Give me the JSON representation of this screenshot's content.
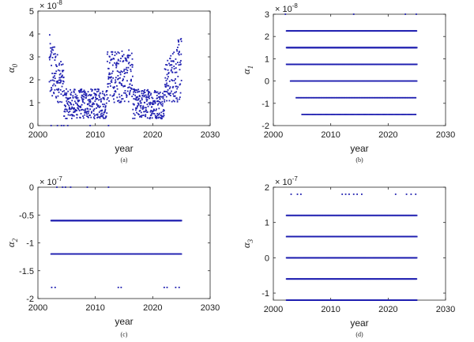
{
  "colors": {
    "marker": "#1f1fb0",
    "axis": "#262626",
    "background": "#ffffff"
  },
  "chart_data": [
    {
      "id": "a",
      "type": "scatter",
      "caption": "(a)",
      "ylabel_symbol": "α",
      "ylabel_subscript": "0",
      "xlabel": "year",
      "yexp_base": "× 10",
      "yexp_power": "-8",
      "xlim": [
        2000,
        2030
      ],
      "ylim": [
        0,
        5
      ],
      "xticks": [
        "2000",
        "2010",
        "2020",
        "2030"
      ],
      "yticks": [
        "0",
        "1",
        "2",
        "3",
        "4",
        "5"
      ],
      "x_range_data": [
        2002,
        2025
      ],
      "grid": false,
      "pattern": "scattered points, high (~1.2–4.1) in 2002–2004, 2012–2016 and 2022–2025, low (~0.3–1.6) elsewhere, a few points at 0"
    },
    {
      "id": "b",
      "type": "scatter",
      "caption": "(b)",
      "ylabel_symbol": "α",
      "ylabel_subscript": "1",
      "xlabel": "year",
      "yexp_base": "× 10",
      "yexp_power": "-8",
      "xlim": [
        2000,
        2030
      ],
      "ylim": [
        -2,
        3
      ],
      "xticks": [
        "2000",
        "2010",
        "2020",
        "2030"
      ],
      "yticks": [
        "-2",
        "-1",
        "0",
        "1",
        "2",
        "3"
      ],
      "levels": [
        3.0,
        2.25,
        1.5,
        0.75,
        0,
        -0.75,
        -1.5
      ],
      "grid": false
    },
    {
      "id": "c",
      "type": "scatter",
      "caption": "(c)",
      "ylabel_symbol": "α",
      "ylabel_subscript": "2",
      "xlabel": "year",
      "yexp_base": "× 10",
      "yexp_power": "-7",
      "xlim": [
        2000,
        2030
      ],
      "ylim": [
        -2,
        0
      ],
      "xticks": [
        "2000",
        "2010",
        "2020",
        "2030"
      ],
      "yticks": [
        "-2",
        "-1.5",
        "-1",
        "-0.5",
        "0"
      ],
      "levels": [
        0,
        -0.6,
        -1.2,
        -1.8
      ],
      "grid": false
    },
    {
      "id": "d",
      "type": "scatter",
      "caption": "(d)",
      "ylabel_symbol": "α",
      "ylabel_subscript": "3",
      "xlabel": "year",
      "yexp_base": "× 10",
      "yexp_power": "-7",
      "xlim": [
        2000,
        2030
      ],
      "ylim": [
        -1.2,
        2
      ],
      "xticks": [
        "2000",
        "2010",
        "2020",
        "2030"
      ],
      "yticks": [
        "-1",
        "0",
        "1",
        "2"
      ],
      "levels": [
        1.8,
        1.2,
        0.6,
        0,
        -0.6,
        -1.2
      ],
      "grid": false
    }
  ]
}
